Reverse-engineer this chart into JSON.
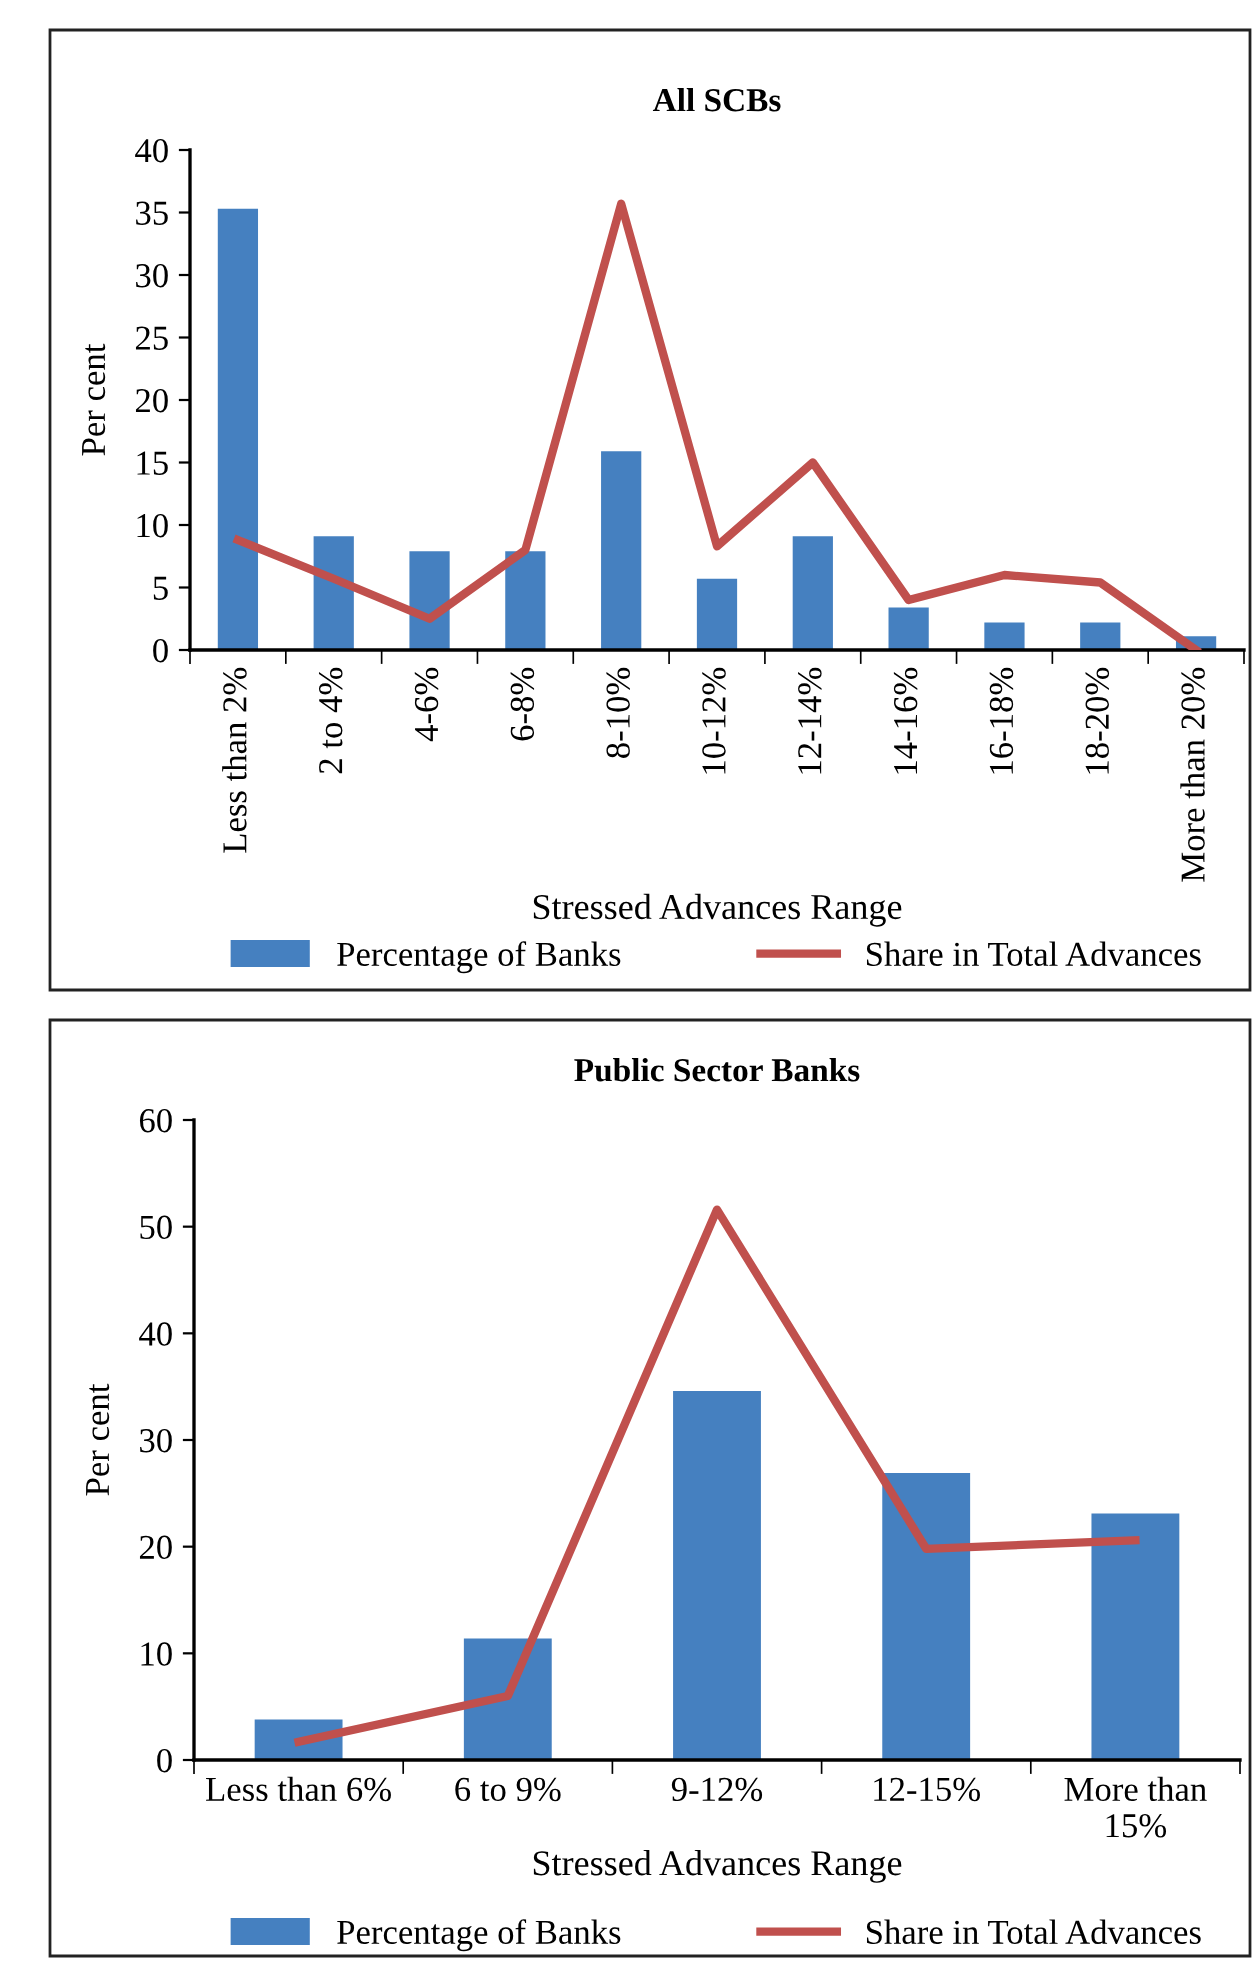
{
  "chart_data": [
    {
      "type": "bar",
      "title": "All SCBs",
      "xlabel": "Stressed Advances Range",
      "ylabel": "Per cent",
      "categories": [
        "Less than 2%",
        "2 to 4%",
        "4-6%",
        "6-8%",
        "8-10%",
        "10-12%",
        "12-14%",
        "14-16%",
        "16-18%",
        "18-20%",
        "More than 20%"
      ],
      "series": [
        {
          "name": "Percentage of Banks",
          "color": "#4580c0",
          "values": [
            35.3,
            9.1,
            7.9,
            7.9,
            15.9,
            5.7,
            9.1,
            3.4,
            2.2,
            2.2,
            1.1
          ]
        },
        {
          "name": "Share in Total Advances",
          "type": "line",
          "color": "#c0504d",
          "values": [
            8.8,
            5.7,
            2.5,
            8.0,
            35.7,
            8.3,
            15.0,
            4.0,
            6.0,
            5.4,
            0
          ]
        }
      ],
      "ylim": [
        0,
        40
      ],
      "yticks": [
        0,
        5,
        10,
        15,
        20,
        25,
        30,
        35,
        40
      ],
      "grid": false,
      "legend": "bottom",
      "marker": "none",
      "line_style": "solid"
    },
    {
      "type": "bar",
      "title": "Public Sector Banks",
      "xlabel": "Stressed Advances Range",
      "ylabel": "Per cent",
      "categories": [
        "Less than 6%",
        "6 to 9%",
        "9-12%",
        "12-15%",
        "More than\n15%"
      ],
      "series": [
        {
          "name": "Percentage of Banks",
          "color": "#4580c0",
          "values": [
            3.8,
            11.4,
            34.6,
            26.9,
            23.1
          ]
        },
        {
          "name": "Share in Total Advances",
          "type": "line",
          "color": "#c0504d",
          "values": [
            1.7,
            6.0,
            51.6,
            19.8,
            20.6
          ]
        }
      ],
      "ylim": [
        0,
        60
      ],
      "yticks": [
        0,
        10,
        20,
        30,
        40,
        50,
        60
      ],
      "grid": false,
      "legend": "bottom",
      "marker": "none",
      "line_style": "solid"
    }
  ]
}
